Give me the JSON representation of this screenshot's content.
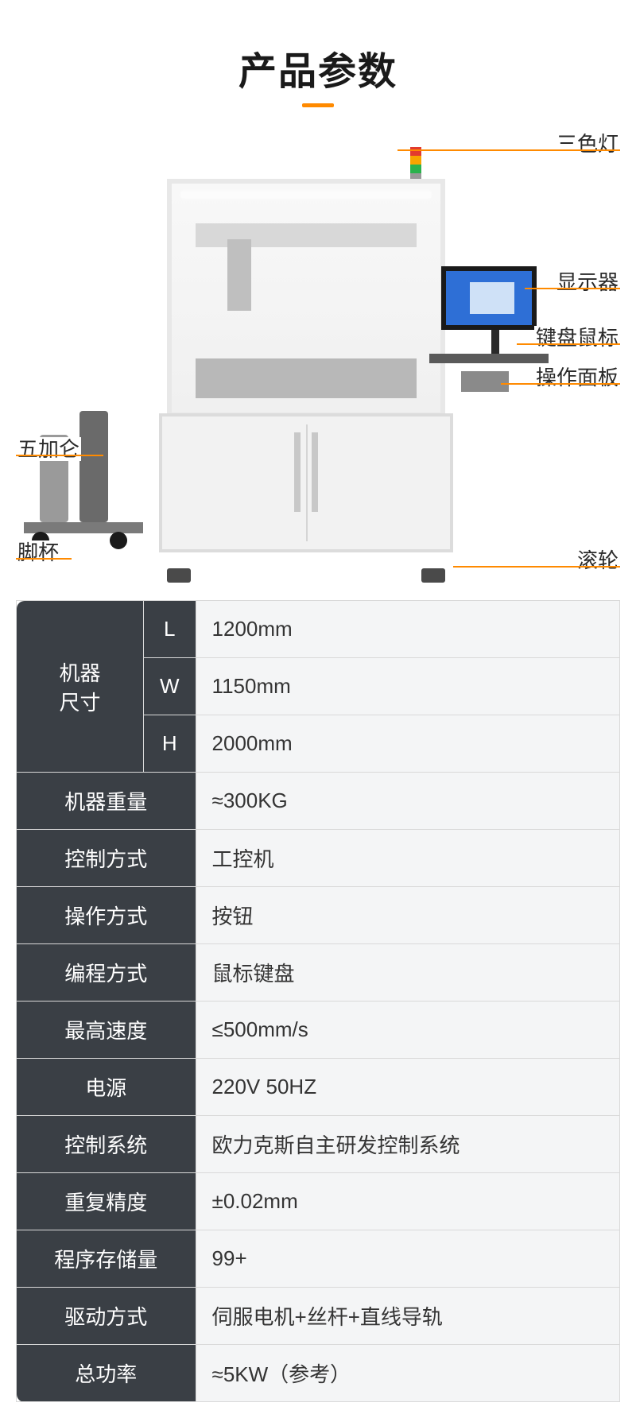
{
  "title": "产品参数",
  "accent_color": "#ff8a00",
  "header_bg": "#3a3f45",
  "header_fg": "#ffffff",
  "value_bg": "#f4f5f6",
  "value_fg": "#343434",
  "border_color": "#d9d9d9",
  "callouts": {
    "signal_light": "三色灯",
    "monitor": "显示器",
    "keyboard_mouse": "键盘鼠标",
    "control_panel": "操作面板",
    "wheel": "滚轮",
    "tank": "五加仑",
    "foot_cup": "脚杯"
  },
  "specs": {
    "size_label": "机器\n尺寸",
    "size": {
      "L": "1200mm",
      "W": "1150mm",
      "H": "2000mm"
    },
    "rows": [
      {
        "label": "机器重量",
        "value": "≈300KG"
      },
      {
        "label": "控制方式",
        "value": "工控机"
      },
      {
        "label": "操作方式",
        "value": "按钮"
      },
      {
        "label": "编程方式",
        "value": "鼠标键盘"
      },
      {
        "label": "最高速度",
        "value": "≤500mm/s"
      },
      {
        "label": "电源",
        "value": "220V 50HZ"
      },
      {
        "label": "控制系统",
        "value": "欧力克斯自主研发控制系统"
      },
      {
        "label": "重复精度",
        "value": "±0.02mm"
      },
      {
        "label": "程序存储量",
        "value": "99+"
      },
      {
        "label": "驱动方式",
        "value": "伺服电机+丝杆+直线导轨"
      },
      {
        "label": "总功率",
        "value": "≈5KW（参考）"
      }
    ]
  }
}
